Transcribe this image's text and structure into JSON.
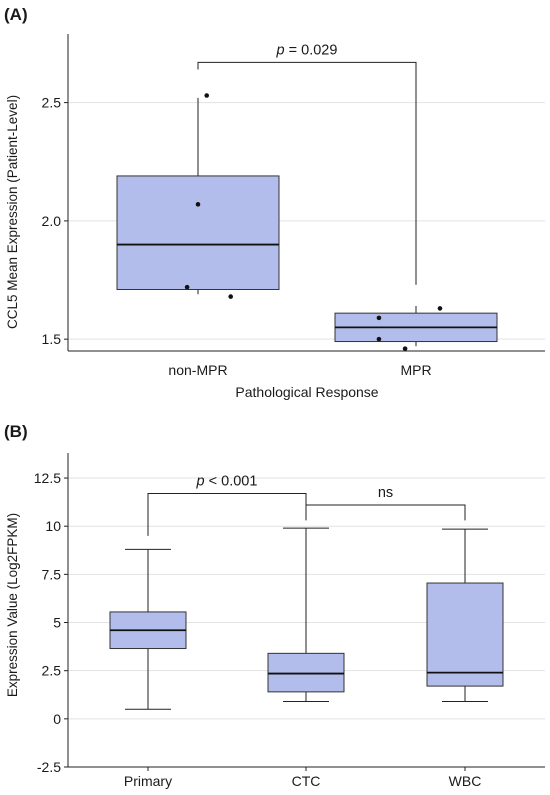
{
  "chart_data": [
    {
      "panel": "(A)",
      "type": "box",
      "xlabel": "Pathological Response",
      "ylabel": "CCL5 Mean Expression (Patient-Level)",
      "ylim": [
        1.45,
        2.79
      ],
      "yticks": [
        1.5,
        2.0,
        2.5
      ],
      "ytick_labels": [
        "1.5",
        "2.0",
        "2.5"
      ],
      "grid": "horizontal",
      "fill_color": "#b2bdec",
      "categories": [
        "non-MPR",
        "MPR"
      ],
      "boxes": [
        {
          "category": "non-MPR",
          "whisker_low": 1.69,
          "q1": 1.71,
          "median": 1.9,
          "q3": 2.19,
          "whisker_high": 2.52
        },
        {
          "category": "MPR",
          "whisker_low": 1.47,
          "q1": 1.49,
          "median": 1.55,
          "q3": 1.61,
          "whisker_high": 1.64
        }
      ],
      "points": [
        {
          "category": "non-MPR",
          "offset": 0.04,
          "y": 2.53
        },
        {
          "category": "non-MPR",
          "offset": 0.0,
          "y": 2.07
        },
        {
          "category": "non-MPR",
          "offset": -0.05,
          "y": 1.72
        },
        {
          "category": "non-MPR",
          "offset": 0.15,
          "y": 1.68
        },
        {
          "category": "MPR",
          "offset": -0.17,
          "y": 1.59
        },
        {
          "category": "MPR",
          "offset": -0.17,
          "y": 1.5
        },
        {
          "category": "MPR",
          "offset": -0.05,
          "y": 1.46
        },
        {
          "category": "MPR",
          "offset": 0.11,
          "y": 1.63
        }
      ],
      "annotations": [
        {
          "from": "non-MPR",
          "to": "MPR",
          "p_prefix": "p",
          "p_rest": " = 0.029",
          "y_line": 2.67,
          "y_left_end": 2.64,
          "y_right_end": 1.73
        }
      ]
    },
    {
      "panel": "(B)",
      "type": "box",
      "xlabel": "",
      "ylabel": "Expression Value (Log2FPKM)",
      "ylim": [
        -2.5,
        13.8
      ],
      "yticks": [
        -2.5,
        0,
        2.5,
        5,
        7.5,
        10,
        12.5
      ],
      "ytick_labels": [
        "-2.5",
        "0",
        "2.5",
        "5",
        "7.5",
        "10",
        "12.5"
      ],
      "grid": "horizontal",
      "fill_color": "#b2bdec",
      "categories": [
        "Primary",
        "CTC",
        "WBC"
      ],
      "boxes": [
        {
          "category": "Primary",
          "whisker_low": 0.5,
          "q1": 3.65,
          "median": 4.6,
          "q3": 5.55,
          "whisker_high": 8.8
        },
        {
          "category": "CTC",
          "whisker_low": 0.9,
          "q1": 1.4,
          "median": 2.35,
          "q3": 3.4,
          "whisker_high": 9.9
        },
        {
          "category": "WBC",
          "whisker_low": 0.9,
          "q1": 1.7,
          "median": 2.4,
          "q3": 7.05,
          "whisker_high": 9.85
        }
      ],
      "annotations": [
        {
          "from": "Primary",
          "to": "CTC",
          "p_prefix": "p",
          "p_rest": " < 0.001",
          "y_line": 11.7,
          "y_left_end": 9.5,
          "y_right_end": 11.1
        },
        {
          "from": "CTC",
          "to": "WBC",
          "p_prefix": "",
          "p_rest": "ns",
          "y_line": 11.1,
          "y_left_end": 10.3,
          "y_right_end": 10.3
        }
      ]
    }
  ]
}
